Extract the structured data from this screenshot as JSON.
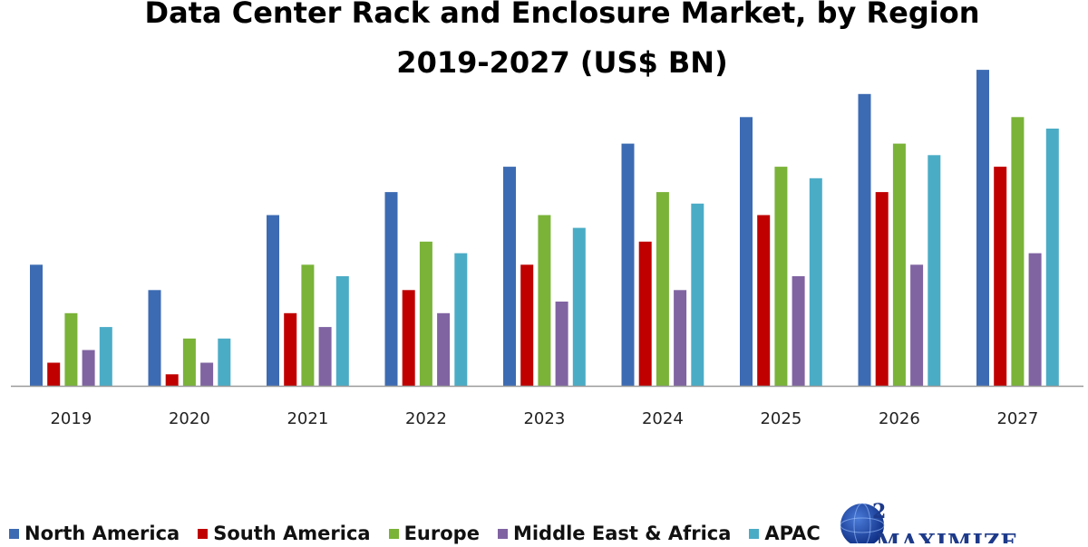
{
  "title_line1": "Data Center Rack and Enclosure Market, by Region",
  "title_line2": "2019-2027 (US$ BN)",
  "logo_text": "MAXIMIZE",
  "chart_data": {
    "type": "bar",
    "categories": [
      "2019",
      "2020",
      "2021",
      "2022",
      "2023",
      "2024",
      "2025",
      "2026",
      "2027"
    ],
    "series": [
      {
        "name": "North America",
        "color": "#3d6bb3",
        "values": [
          10.5,
          8.3,
          14.8,
          16.8,
          19.0,
          21.0,
          23.3,
          25.3,
          27.4
        ]
      },
      {
        "name": "South America",
        "color": "#c00000",
        "values": [
          2.0,
          1.0,
          6.3,
          8.3,
          10.5,
          12.5,
          14.8,
          16.8,
          19.0
        ]
      },
      {
        "name": "Europe",
        "color": "#7ab338",
        "values": [
          6.3,
          4.1,
          10.5,
          12.5,
          14.8,
          16.8,
          19.0,
          21.0,
          23.3
        ]
      },
      {
        "name": "Middle East & Africa",
        "color": "#8064a2",
        "values": [
          3.1,
          2.0,
          5.1,
          6.3,
          7.3,
          8.3,
          9.5,
          10.5,
          11.5
        ]
      },
      {
        "name": "APAC",
        "color": "#4bacc6",
        "values": [
          5.1,
          4.1,
          9.5,
          11.5,
          13.7,
          15.8,
          18.0,
          20.0,
          22.3
        ]
      }
    ],
    "ylim": [
      0,
      30
    ],
    "grid": false,
    "legend_position": "bottom"
  }
}
